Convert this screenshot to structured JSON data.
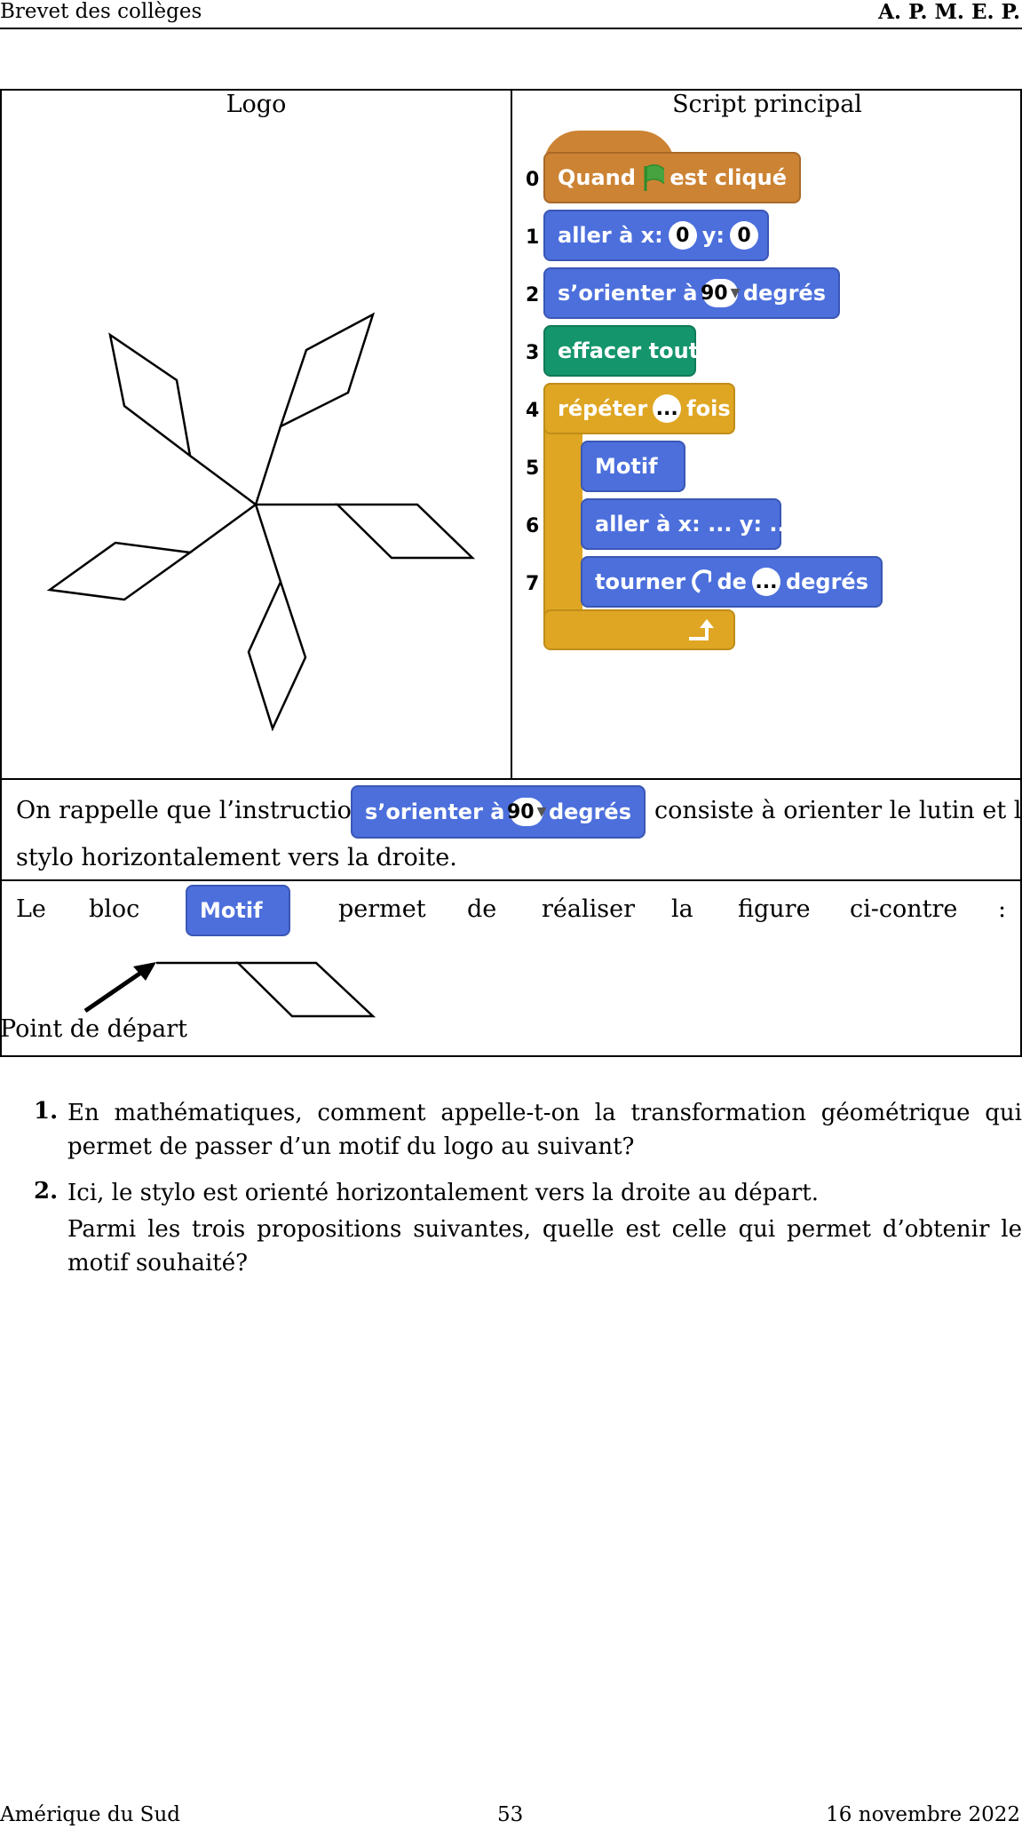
{
  "header": {
    "left": "Brevet des collèges",
    "right": "A. P. M. E. P."
  },
  "table": {
    "col1_title": "Logo",
    "col2_title": "Script principal"
  },
  "script": {
    "line_numbers": [
      "0",
      "1",
      "2",
      "3",
      "4",
      "5",
      "6",
      "7"
    ],
    "b0_a": "Quand",
    "b0_b": "est cliqué",
    "b1_a": "aller à x:",
    "b1_x": "0",
    "b1_b": "y:",
    "b1_y": "0",
    "b2_a": "s’orienter à",
    "b2_v": "90",
    "b2_b": "degrés",
    "b3": "effacer tout",
    "b4_a": "répéter",
    "b4_v": "...",
    "b4_b": "fois",
    "b5": "Motif",
    "b6": "aller à x: ... y: ...",
    "b7_a": "tourner",
    "b7_b": "de",
    "b7_v": "...",
    "b7_c": "degrés"
  },
  "reminder": {
    "text_a": "On rappelle que l’instruction",
    "block_a": "s’orienter à",
    "block_v": "90",
    "block_b": "degrés",
    "text_b": "consiste à orienter le lutin et le",
    "text_c": "stylo horizontalement vers la droite."
  },
  "motif_row": {
    "words": [
      "Le",
      "bloc",
      "permet",
      "de",
      "réaliser",
      "la",
      "figure",
      "ci-contre",
      ":"
    ],
    "block": "Motif",
    "start_label": "Point de départ"
  },
  "questions": [
    {
      "num": "1.",
      "text": "En mathématiques, comment appelle-t-on la transformation géométrique qui permet de passer d’un motif du logo au suivant?"
    },
    {
      "num": "2.",
      "text": "Ici, le stylo est orienté horizontalement vers la droite au départ.",
      "text2": "Parmi les trois propositions suivantes, quelle est celle qui permet d’obtenir le motif souhaité?"
    }
  ],
  "footer": {
    "left": "Amérique du Sud",
    "center": "53",
    "right": "16 novembre 2022"
  },
  "colors": {
    "blue": "#4c6fdc",
    "green": "#14956b",
    "orange": "#cc8333",
    "gold": "#dfa623"
  }
}
